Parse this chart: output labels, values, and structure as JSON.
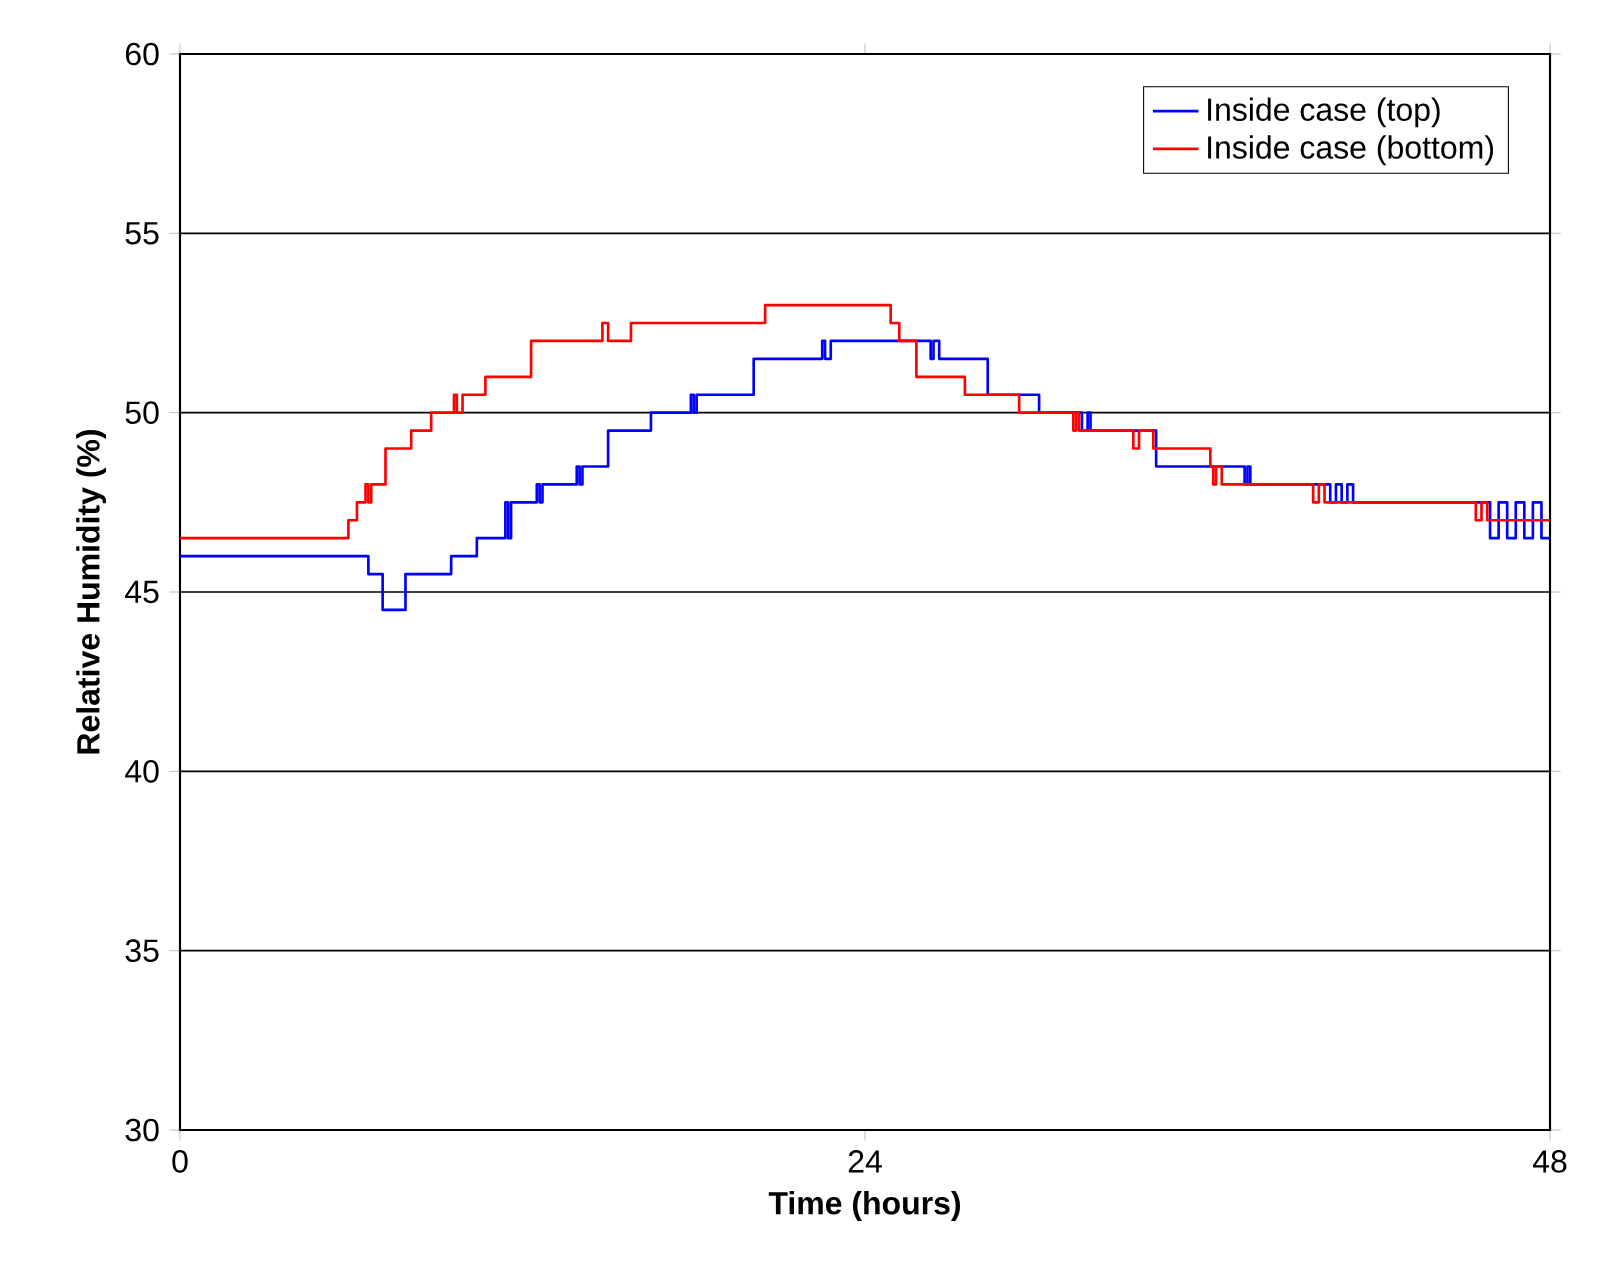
{
  "chart_data": {
    "type": "step",
    "xlabel": "Time (hours)",
    "ylabel": "Relative Humidity (%)",
    "xlim": [
      0,
      48
    ],
    "xticks": [
      0,
      24,
      48
    ],
    "ylim": [
      30,
      60
    ],
    "yticks": [
      30,
      35,
      40,
      45,
      50,
      55,
      60
    ],
    "grid": "y",
    "legend": "top right",
    "series": [
      {
        "name": "Inside case (top)",
        "color": "#0000ff",
        "x": [
          0,
          6.6,
          7.1,
          7.9,
          9.5,
          10.4,
          11.4,
          11.5,
          11.6,
          12.5,
          12.6,
          12.7,
          13.9,
          14.0,
          14.1,
          15.0,
          16.5,
          17.9,
          18.0,
          18.1,
          20.1,
          22.5,
          22.6,
          22.8,
          26.3,
          26.4,
          26.6,
          28.3,
          30.1,
          31.6,
          31.8,
          31.9,
          34.2,
          37.3,
          37.4,
          37.5,
          40.3,
          40.5,
          40.7,
          40.9,
          41.1,
          45.9,
          46.2,
          46.5,
          46.8,
          47.1,
          47.4,
          47.7,
          48
        ],
        "values": [
          46,
          45.5,
          44.5,
          45.5,
          46,
          46.5,
          47.5,
          46.5,
          47.5,
          48,
          47.5,
          48,
          48.5,
          48,
          48.5,
          49.5,
          50,
          50.5,
          50,
          50.5,
          51.5,
          52,
          51.5,
          52,
          51.5,
          52,
          51.5,
          50.5,
          50,
          49.5,
          50,
          49.5,
          48.5,
          48,
          48.5,
          48,
          47.5,
          48,
          47.5,
          48,
          47.5,
          46.5,
          47.5,
          46.5,
          47.5,
          46.5,
          47.5,
          46.5,
          46.5
        ]
      },
      {
        "name": "Inside case (bottom)",
        "color": "#ff0000",
        "x": [
          0,
          5.9,
          6.2,
          6.5,
          6.6,
          6.7,
          7.2,
          8.1,
          8.8,
          9.6,
          9.7,
          9.9,
          10.7,
          12.3,
          14.8,
          15.0,
          15.8,
          20.5,
          24.9,
          25.2,
          25.8,
          27.5,
          29.4,
          31.3,
          31.4,
          31.5,
          33.4,
          33.6,
          34.1,
          36.1,
          36.2,
          36.3,
          36.5,
          39.7,
          39.9,
          40.1,
          45.4,
          45.6,
          45.8,
          48
        ],
        "values": [
          46.5,
          47,
          47.5,
          48,
          47.5,
          48,
          49,
          49.5,
          50,
          50.5,
          50,
          50.5,
          51,
          52,
          52.5,
          52,
          52.5,
          53,
          52.5,
          52,
          51,
          50.5,
          50,
          49.5,
          50,
          49.5,
          49,
          49.5,
          49,
          48.5,
          48,
          48.5,
          48,
          47.5,
          48,
          47.5,
          47,
          47.5,
          47,
          47
        ]
      }
    ]
  }
}
